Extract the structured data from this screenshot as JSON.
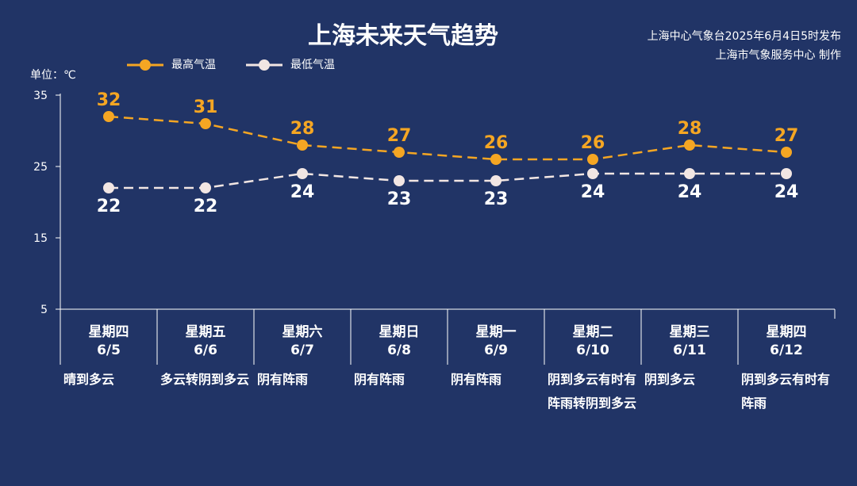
{
  "header": {
    "title": "上海未来天气趋势",
    "issuer_line1": "上海中心气象台2025年6月4日5时发布",
    "issuer_line2": "上海市气象服务中心 制作"
  },
  "colors": {
    "background": "#213466",
    "high": "#f5a623",
    "low": "#f2e6e3",
    "axis": "#ffffff"
  },
  "chart_data": {
    "type": "line",
    "title": "上海未来天气趋势",
    "ylabel": "单位：℃",
    "ylim": [
      5,
      35
    ],
    "yticks": [
      5,
      15,
      25,
      35
    ],
    "grid": false,
    "legend_position": "top-left",
    "categories": [
      "星期四",
      "星期五",
      "星期六",
      "星期日",
      "星期一",
      "星期二",
      "星期三",
      "星期四"
    ],
    "dates": [
      "6/5",
      "6/6",
      "6/7",
      "6/8",
      "6/9",
      "6/10",
      "6/11",
      "6/12"
    ],
    "series": [
      {
        "name": "最高气温",
        "values": [
          32,
          31,
          28,
          27,
          26,
          26,
          28,
          27
        ]
      },
      {
        "name": "最低气温",
        "values": [
          22,
          22,
          24,
          23,
          23,
          24,
          24,
          24
        ]
      }
    ],
    "weather": [
      "晴到多云",
      "多云转阴到多云",
      "阴有阵雨",
      "阴有阵雨",
      "阴有阵雨",
      "阴到多云有时有阵雨转阴到多云",
      "阴到多云",
      "阴到多云有时有阵雨"
    ]
  }
}
